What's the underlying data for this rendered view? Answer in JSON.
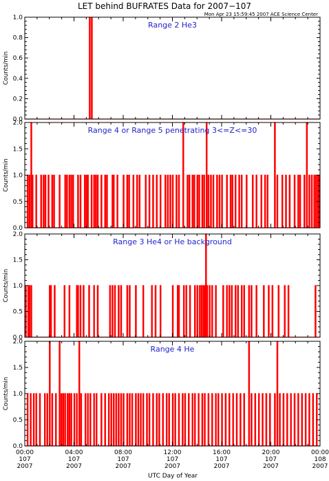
{
  "figure": {
    "title": "LET behind BUFRATES Data for 2007−107",
    "timestamp": "Mon Apr 23 15:59:45 2007 ACE Science Center",
    "xlabel": "UTC Day of Year",
    "colors": {
      "data": "#ff0000",
      "panel_title": "#2222cc",
      "axes": "#000000"
    }
  },
  "chart_data": [
    {
      "type": "line",
      "title": "Range 2 He3",
      "ylabel": "Counts/min",
      "ylim": [
        0.0,
        1.0
      ],
      "yticks": [
        "0.0",
        "0.2",
        "0.4",
        "0.6",
        "0.8",
        "1.0"
      ],
      "xlim": [
        0,
        24
      ],
      "baseline": 0,
      "events": [
        {
          "t": 5.25,
          "v": 1
        },
        {
          "t": 5.42,
          "v": 1
        }
      ]
    },
    {
      "type": "line",
      "title": "Range 4 or Range 5 penetrating 3<=Z<=30",
      "ylabel": "Counts/min",
      "ylim": [
        0.0,
        2.0
      ],
      "yticks": [
        "0.0",
        "0.5",
        "1.0",
        "1.5",
        "2.0"
      ],
      "xlim": [
        0,
        24
      ],
      "baseline": 0,
      "events": [
        {
          "t": 0.2,
          "v": 1
        },
        {
          "t": 0.35,
          "v": 1
        },
        {
          "t": 0.5,
          "v": 2
        },
        {
          "t": 0.6,
          "v": 1
        },
        {
          "t": 0.9,
          "v": 1
        },
        {
          "t": 1.3,
          "v": 1
        },
        {
          "t": 1.5,
          "v": 1
        },
        {
          "t": 1.65,
          "v": 1
        },
        {
          "t": 1.9,
          "v": 1
        },
        {
          "t": 2.2,
          "v": 1
        },
        {
          "t": 2.35,
          "v": 1
        },
        {
          "t": 2.8,
          "v": 1
        },
        {
          "t": 3.25,
          "v": 1
        },
        {
          "t": 3.4,
          "v": 1
        },
        {
          "t": 3.6,
          "v": 1
        },
        {
          "t": 3.75,
          "v": 1
        },
        {
          "t": 3.9,
          "v": 1
        },
        {
          "t": 4.3,
          "v": 1
        },
        {
          "t": 4.5,
          "v": 1
        },
        {
          "t": 4.85,
          "v": 1
        },
        {
          "t": 5.0,
          "v": 1
        },
        {
          "t": 5.1,
          "v": 1
        },
        {
          "t": 5.4,
          "v": 1
        },
        {
          "t": 5.6,
          "v": 1
        },
        {
          "t": 5.75,
          "v": 1
        },
        {
          "t": 5.9,
          "v": 1
        },
        {
          "t": 6.2,
          "v": 1
        },
        {
          "t": 6.5,
          "v": 1
        },
        {
          "t": 6.65,
          "v": 1
        },
        {
          "t": 7.1,
          "v": 1
        },
        {
          "t": 7.2,
          "v": 1
        },
        {
          "t": 7.5,
          "v": 1
        },
        {
          "t": 8.0,
          "v": 1
        },
        {
          "t": 8.3,
          "v": 1
        },
        {
          "t": 8.45,
          "v": 1
        },
        {
          "t": 8.8,
          "v": 1
        },
        {
          "t": 9.1,
          "v": 1
        },
        {
          "t": 9.3,
          "v": 1
        },
        {
          "t": 9.8,
          "v": 1
        },
        {
          "t": 10.1,
          "v": 1
        },
        {
          "t": 10.4,
          "v": 1
        },
        {
          "t": 10.7,
          "v": 1
        },
        {
          "t": 11.0,
          "v": 1
        },
        {
          "t": 11.4,
          "v": 1
        },
        {
          "t": 11.6,
          "v": 1
        },
        {
          "t": 11.8,
          "v": 1
        },
        {
          "t": 12.0,
          "v": 1
        },
        {
          "t": 12.3,
          "v": 1
        },
        {
          "t": 12.5,
          "v": 1
        },
        {
          "t": 12.85,
          "v": 2
        },
        {
          "t": 13.2,
          "v": 1
        },
        {
          "t": 13.35,
          "v": 1
        },
        {
          "t": 13.6,
          "v": 1
        },
        {
          "t": 13.75,
          "v": 1
        },
        {
          "t": 14.0,
          "v": 1
        },
        {
          "t": 14.15,
          "v": 1
        },
        {
          "t": 14.4,
          "v": 1
        },
        {
          "t": 14.55,
          "v": 1
        },
        {
          "t": 14.75,
          "v": 2
        },
        {
          "t": 14.9,
          "v": 1
        },
        {
          "t": 15.1,
          "v": 1
        },
        {
          "t": 15.3,
          "v": 1
        },
        {
          "t": 15.6,
          "v": 1
        },
        {
          "t": 15.8,
          "v": 1
        },
        {
          "t": 16.0,
          "v": 1
        },
        {
          "t": 16.4,
          "v": 1
        },
        {
          "t": 16.7,
          "v": 1
        },
        {
          "t": 16.85,
          "v": 1
        },
        {
          "t": 17.1,
          "v": 1
        },
        {
          "t": 17.4,
          "v": 1
        },
        {
          "t": 17.6,
          "v": 1
        },
        {
          "t": 18.0,
          "v": 1
        },
        {
          "t": 18.5,
          "v": 1
        },
        {
          "t": 18.8,
          "v": 1
        },
        {
          "t": 19.2,
          "v": 1
        },
        {
          "t": 19.5,
          "v": 1
        },
        {
          "t": 19.7,
          "v": 1
        },
        {
          "t": 20.3,
          "v": 2
        },
        {
          "t": 20.5,
          "v": 1
        },
        {
          "t": 20.9,
          "v": 1
        },
        {
          "t": 21.2,
          "v": 1
        },
        {
          "t": 21.5,
          "v": 1
        },
        {
          "t": 21.9,
          "v": 1
        },
        {
          "t": 22.2,
          "v": 1
        },
        {
          "t": 22.35,
          "v": 1
        },
        {
          "t": 22.7,
          "v": 1
        },
        {
          "t": 22.9,
          "v": 2
        },
        {
          "t": 23.1,
          "v": 1
        },
        {
          "t": 23.3,
          "v": 1
        },
        {
          "t": 23.5,
          "v": 1
        },
        {
          "t": 23.65,
          "v": 1
        },
        {
          "t": 23.8,
          "v": 1
        },
        {
          "t": 23.9,
          "v": 1
        }
      ]
    },
    {
      "type": "line",
      "title": "Range 3 He4 or He background",
      "ylabel": "Counts/min",
      "ylim": [
        0.0,
        2.0
      ],
      "yticks": [
        "0.0",
        "0.5",
        "1.0",
        "1.5",
        "2.0"
      ],
      "xlim": [
        0,
        24
      ],
      "baseline": 0,
      "events": [
        {
          "t": 0.05,
          "v": 1
        },
        {
          "t": 0.25,
          "v": 1
        },
        {
          "t": 0.35,
          "v": 1
        },
        {
          "t": 0.5,
          "v": 1
        },
        {
          "t": 2.0,
          "v": 1
        },
        {
          "t": 2.1,
          "v": 1
        },
        {
          "t": 2.4,
          "v": 1
        },
        {
          "t": 3.2,
          "v": 1
        },
        {
          "t": 3.6,
          "v": 1
        },
        {
          "t": 4.2,
          "v": 1
        },
        {
          "t": 4.3,
          "v": 1
        },
        {
          "t": 4.5,
          "v": 1
        },
        {
          "t": 4.75,
          "v": 1
        },
        {
          "t": 5.2,
          "v": 1
        },
        {
          "t": 5.6,
          "v": 1
        },
        {
          "t": 5.9,
          "v": 1
        },
        {
          "t": 6.9,
          "v": 1
        },
        {
          "t": 7.1,
          "v": 1
        },
        {
          "t": 7.3,
          "v": 1
        },
        {
          "t": 7.6,
          "v": 1
        },
        {
          "t": 7.8,
          "v": 1
        },
        {
          "t": 8.3,
          "v": 1
        },
        {
          "t": 8.5,
          "v": 1
        },
        {
          "t": 9.0,
          "v": 1
        },
        {
          "t": 9.6,
          "v": 1
        },
        {
          "t": 10.3,
          "v": 1
        },
        {
          "t": 10.6,
          "v": 1
        },
        {
          "t": 11.0,
          "v": 1
        },
        {
          "t": 12.0,
          "v": 1
        },
        {
          "t": 12.4,
          "v": 1
        },
        {
          "t": 12.5,
          "v": 1
        },
        {
          "t": 12.9,
          "v": 1
        },
        {
          "t": 13.1,
          "v": 1
        },
        {
          "t": 13.4,
          "v": 1
        },
        {
          "t": 13.8,
          "v": 1
        },
        {
          "t": 14.0,
          "v": 1
        },
        {
          "t": 14.2,
          "v": 1
        },
        {
          "t": 14.35,
          "v": 1
        },
        {
          "t": 14.5,
          "v": 1
        },
        {
          "t": 14.6,
          "v": 1
        },
        {
          "t": 14.7,
          "v": 2
        },
        {
          "t": 14.8,
          "v": 1
        },
        {
          "t": 15.0,
          "v": 1
        },
        {
          "t": 15.2,
          "v": 1
        },
        {
          "t": 15.5,
          "v": 1
        },
        {
          "t": 16.1,
          "v": 1
        },
        {
          "t": 16.4,
          "v": 1
        },
        {
          "t": 16.6,
          "v": 1
        },
        {
          "t": 16.8,
          "v": 1
        },
        {
          "t": 17.1,
          "v": 1
        },
        {
          "t": 17.3,
          "v": 1
        },
        {
          "t": 17.6,
          "v": 1
        },
        {
          "t": 17.8,
          "v": 1
        },
        {
          "t": 18.2,
          "v": 1
        },
        {
          "t": 18.4,
          "v": 1
        },
        {
          "t": 18.8,
          "v": 1
        },
        {
          "t": 19.4,
          "v": 1
        },
        {
          "t": 19.8,
          "v": 1
        },
        {
          "t": 20.1,
          "v": 1
        },
        {
          "t": 20.6,
          "v": 1
        },
        {
          "t": 21.1,
          "v": 1
        },
        {
          "t": 21.4,
          "v": 1
        },
        {
          "t": 23.6,
          "v": 1
        }
      ]
    },
    {
      "type": "line",
      "title": "Range 4 He",
      "ylabel": "Counts/min",
      "ylim": [
        0.0,
        2.0
      ],
      "yticks": [
        "0.0",
        "0.5",
        "1.0",
        "1.5",
        "2.0"
      ],
      "xlim": [
        0,
        24
      ],
      "baseline": 0,
      "events": [
        {
          "t": 0.2,
          "v": 1
        },
        {
          "t": 0.45,
          "v": 1
        },
        {
          "t": 0.7,
          "v": 1
        },
        {
          "t": 0.9,
          "v": 1
        },
        {
          "t": 1.2,
          "v": 1
        },
        {
          "t": 1.6,
          "v": 1
        },
        {
          "t": 1.8,
          "v": 1
        },
        {
          "t": 2.0,
          "v": 2
        },
        {
          "t": 2.2,
          "v": 1
        },
        {
          "t": 2.5,
          "v": 1
        },
        {
          "t": 2.8,
          "v": 2
        },
        {
          "t": 2.95,
          "v": 1
        },
        {
          "t": 3.1,
          "v": 1
        },
        {
          "t": 3.25,
          "v": 1
        },
        {
          "t": 3.45,
          "v": 1
        },
        {
          "t": 3.6,
          "v": 1
        },
        {
          "t": 3.75,
          "v": 1
        },
        {
          "t": 4.0,
          "v": 1
        },
        {
          "t": 4.2,
          "v": 1
        },
        {
          "t": 4.4,
          "v": 2
        },
        {
          "t": 4.55,
          "v": 1
        },
        {
          "t": 4.9,
          "v": 1
        },
        {
          "t": 5.1,
          "v": 1
        },
        {
          "t": 5.3,
          "v": 1
        },
        {
          "t": 5.6,
          "v": 1
        },
        {
          "t": 5.8,
          "v": 1
        },
        {
          "t": 6.2,
          "v": 1
        },
        {
          "t": 6.5,
          "v": 1
        },
        {
          "t": 6.8,
          "v": 1
        },
        {
          "t": 7.0,
          "v": 1
        },
        {
          "t": 7.2,
          "v": 1
        },
        {
          "t": 7.4,
          "v": 1
        },
        {
          "t": 7.6,
          "v": 1
        },
        {
          "t": 7.8,
          "v": 1
        },
        {
          "t": 8.0,
          "v": 1
        },
        {
          "t": 8.3,
          "v": 1
        },
        {
          "t": 8.5,
          "v": 1
        },
        {
          "t": 8.7,
          "v": 1
        },
        {
          "t": 9.0,
          "v": 1
        },
        {
          "t": 9.2,
          "v": 1
        },
        {
          "t": 9.4,
          "v": 1
        },
        {
          "t": 9.6,
          "v": 1
        },
        {
          "t": 9.9,
          "v": 1
        },
        {
          "t": 10.1,
          "v": 1
        },
        {
          "t": 10.4,
          "v": 1
        },
        {
          "t": 10.7,
          "v": 1
        },
        {
          "t": 10.9,
          "v": 1
        },
        {
          "t": 11.2,
          "v": 1
        },
        {
          "t": 11.5,
          "v": 1
        },
        {
          "t": 11.7,
          "v": 1
        },
        {
          "t": 12.0,
          "v": 1
        },
        {
          "t": 12.2,
          "v": 1
        },
        {
          "t": 12.5,
          "v": 1
        },
        {
          "t": 12.8,
          "v": 1
        },
        {
          "t": 13.0,
          "v": 1
        },
        {
          "t": 13.3,
          "v": 1
        },
        {
          "t": 13.6,
          "v": 1
        },
        {
          "t": 13.8,
          "v": 1
        },
        {
          "t": 14.1,
          "v": 1
        },
        {
          "t": 14.4,
          "v": 1
        },
        {
          "t": 14.6,
          "v": 1
        },
        {
          "t": 14.9,
          "v": 1
        },
        {
          "t": 15.2,
          "v": 1
        },
        {
          "t": 15.5,
          "v": 1
        },
        {
          "t": 15.7,
          "v": 1
        },
        {
          "t": 16.0,
          "v": 1
        },
        {
          "t": 16.3,
          "v": 1
        },
        {
          "t": 16.6,
          "v": 1
        },
        {
          "t": 16.9,
          "v": 1
        },
        {
          "t": 17.2,
          "v": 1
        },
        {
          "t": 17.5,
          "v": 1
        },
        {
          "t": 17.8,
          "v": 1
        },
        {
          "t": 18.2,
          "v": 2
        },
        {
          "t": 18.4,
          "v": 1
        },
        {
          "t": 18.7,
          "v": 1
        },
        {
          "t": 19.0,
          "v": 1
        },
        {
          "t": 19.3,
          "v": 1
        },
        {
          "t": 19.6,
          "v": 1
        },
        {
          "t": 19.9,
          "v": 1
        },
        {
          "t": 20.3,
          "v": 1
        },
        {
          "t": 20.5,
          "v": 2
        },
        {
          "t": 20.7,
          "v": 1
        },
        {
          "t": 21.0,
          "v": 1
        },
        {
          "t": 21.3,
          "v": 1
        },
        {
          "t": 21.6,
          "v": 1
        },
        {
          "t": 21.9,
          "v": 1
        },
        {
          "t": 22.2,
          "v": 1
        },
        {
          "t": 22.5,
          "v": 1
        },
        {
          "t": 22.8,
          "v": 1
        },
        {
          "t": 23.1,
          "v": 1
        },
        {
          "t": 23.4,
          "v": 1
        },
        {
          "t": 23.7,
          "v": 1
        }
      ]
    }
  ],
  "xaxis": {
    "ticks": [
      {
        "t": 0,
        "time": "00:00",
        "doy": "107",
        "year": "2007"
      },
      {
        "t": 4,
        "time": "04:00",
        "doy": "107",
        "year": "2007"
      },
      {
        "t": 8,
        "time": "08:00",
        "doy": "107",
        "year": "2007"
      },
      {
        "t": 12,
        "time": "12:00",
        "doy": "107",
        "year": "2007"
      },
      {
        "t": 16,
        "time": "16:00",
        "doy": "107",
        "year": "2007"
      },
      {
        "t": 20,
        "time": "20:00",
        "doy": "107",
        "year": "2007"
      },
      {
        "t": 24,
        "time": "00:00",
        "doy": "108",
        "year": "2007"
      }
    ]
  }
}
